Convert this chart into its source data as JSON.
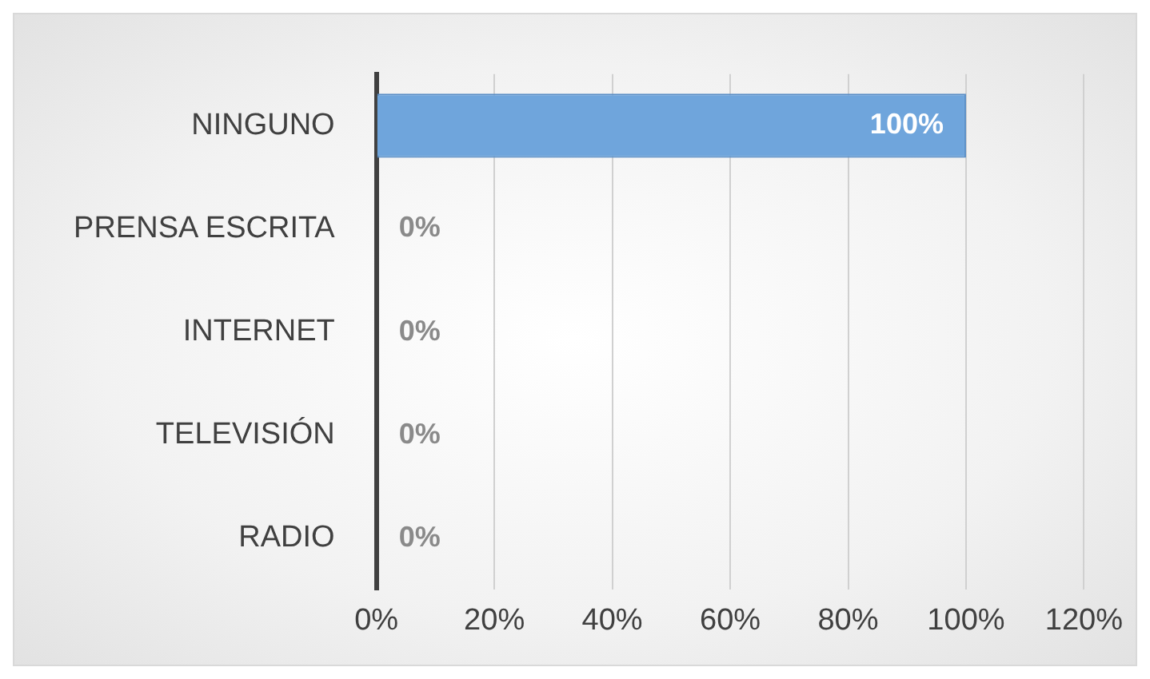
{
  "chart_data": {
    "type": "bar",
    "orientation": "horizontal",
    "categories": [
      "NINGUNO",
      "PRENSA ESCRITA",
      "INTERNET",
      "TELEVISIÓN",
      "RADIO"
    ],
    "series": [
      {
        "color": "#6fa5dc",
        "values": [
          100,
          0,
          0,
          0,
          0
        ],
        "value_labels": [
          "100%",
          "0%",
          "0%",
          "0%",
          "0%"
        ]
      }
    ],
    "xlim": [
      0,
      120
    ],
    "xticks": [
      {
        "value": 0,
        "label": "0%"
      },
      {
        "value": 20,
        "label": "20%"
      },
      {
        "value": 40,
        "label": "40%"
      },
      {
        "value": 60,
        "label": "60%"
      },
      {
        "value": 80,
        "label": "80%"
      },
      {
        "value": 100,
        "label": "100%"
      },
      {
        "value": 120,
        "label": "120%"
      }
    ],
    "grid": "x",
    "legend": false
  }
}
